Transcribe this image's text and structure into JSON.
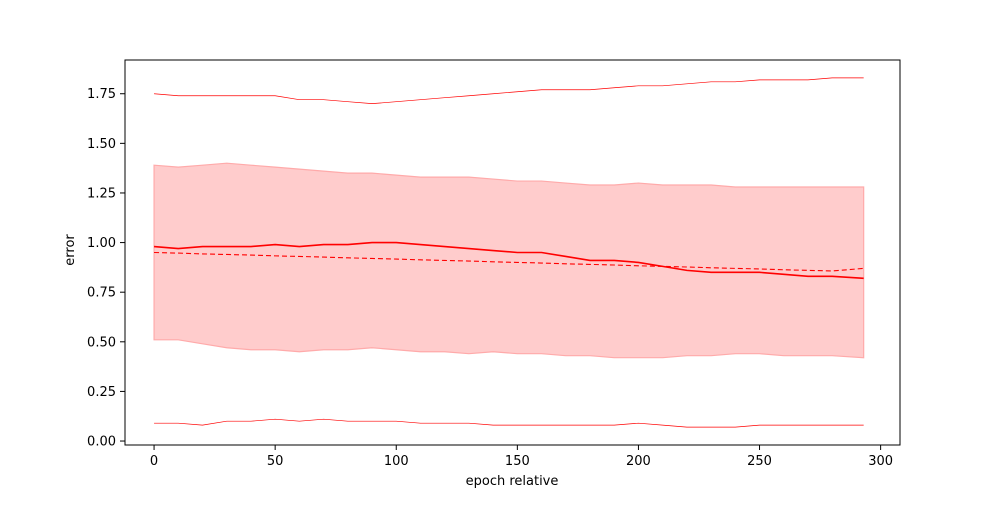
{
  "chart_data": {
    "type": "line",
    "xlabel": "epoch relative",
    "ylabel": "error",
    "xlim": [
      -12,
      308
    ],
    "ylim": [
      -0.02,
      1.92
    ],
    "x_ticks": [
      0,
      50,
      100,
      150,
      200,
      250,
      300
    ],
    "y_ticks": [
      0.0,
      0.25,
      0.5,
      0.75,
      1.0,
      1.25,
      1.5,
      1.75
    ],
    "x_tick_labels": [
      "0",
      "50",
      "100",
      "150",
      "200",
      "250",
      "300"
    ],
    "y_tick_labels": [
      "0.00",
      "0.25",
      "0.50",
      "0.75",
      "1.00",
      "1.25",
      "1.50",
      "1.75"
    ],
    "grid": false,
    "x": [
      0,
      10,
      20,
      30,
      40,
      50,
      60,
      70,
      80,
      90,
      100,
      110,
      120,
      130,
      140,
      150,
      160,
      170,
      180,
      190,
      200,
      210,
      220,
      230,
      240,
      250,
      260,
      270,
      280,
      293
    ],
    "series": [
      {
        "role": "mean",
        "style": "solid",
        "values": [
          0.98,
          0.97,
          0.98,
          0.98,
          0.98,
          0.99,
          0.98,
          0.99,
          0.99,
          1.0,
          1.0,
          0.99,
          0.98,
          0.97,
          0.96,
          0.95,
          0.95,
          0.93,
          0.91,
          0.91,
          0.9,
          0.88,
          0.86,
          0.85,
          0.85,
          0.85,
          0.84,
          0.83,
          0.83,
          0.82
        ]
      },
      {
        "role": "trend",
        "style": "dashed",
        "values": [
          0.95,
          0.947,
          0.943,
          0.94,
          0.937,
          0.933,
          0.93,
          0.927,
          0.923,
          0.92,
          0.917,
          0.913,
          0.91,
          0.907,
          0.903,
          0.9,
          0.897,
          0.893,
          0.89,
          0.887,
          0.883,
          0.88,
          0.877,
          0.873,
          0.87,
          0.867,
          0.863,
          0.86,
          0.857,
          0.87
        ]
      },
      {
        "role": "band-upper",
        "style": "band",
        "values": [
          1.39,
          1.38,
          1.39,
          1.4,
          1.39,
          1.38,
          1.37,
          1.36,
          1.35,
          1.35,
          1.34,
          1.33,
          1.33,
          1.33,
          1.32,
          1.31,
          1.31,
          1.3,
          1.29,
          1.29,
          1.3,
          1.29,
          1.29,
          1.29,
          1.28,
          1.28,
          1.28,
          1.28,
          1.28,
          1.28
        ]
      },
      {
        "role": "band-lower",
        "style": "band",
        "values": [
          0.51,
          0.51,
          0.49,
          0.47,
          0.46,
          0.46,
          0.45,
          0.46,
          0.46,
          0.47,
          0.46,
          0.45,
          0.45,
          0.44,
          0.45,
          0.44,
          0.44,
          0.43,
          0.43,
          0.42,
          0.42,
          0.42,
          0.43,
          0.43,
          0.44,
          0.44,
          0.43,
          0.43,
          0.43,
          0.42
        ]
      },
      {
        "role": "max",
        "style": "thin",
        "values": [
          1.75,
          1.74,
          1.74,
          1.74,
          1.74,
          1.74,
          1.72,
          1.72,
          1.71,
          1.7,
          1.71,
          1.72,
          1.73,
          1.74,
          1.75,
          1.76,
          1.77,
          1.77,
          1.77,
          1.78,
          1.79,
          1.79,
          1.8,
          1.81,
          1.81,
          1.82,
          1.82,
          1.82,
          1.83,
          1.83
        ]
      },
      {
        "role": "min",
        "style": "thin",
        "values": [
          0.09,
          0.09,
          0.08,
          0.1,
          0.1,
          0.11,
          0.1,
          0.11,
          0.1,
          0.1,
          0.1,
          0.09,
          0.09,
          0.09,
          0.08,
          0.08,
          0.08,
          0.08,
          0.08,
          0.08,
          0.09,
          0.08,
          0.07,
          0.07,
          0.07,
          0.08,
          0.08,
          0.08,
          0.08,
          0.08
        ]
      }
    ],
    "colors": {
      "line": "#ff0000",
      "band_fill": "#ffcccc",
      "band_edge": "#ffaaaa",
      "axes": "#000000"
    }
  }
}
